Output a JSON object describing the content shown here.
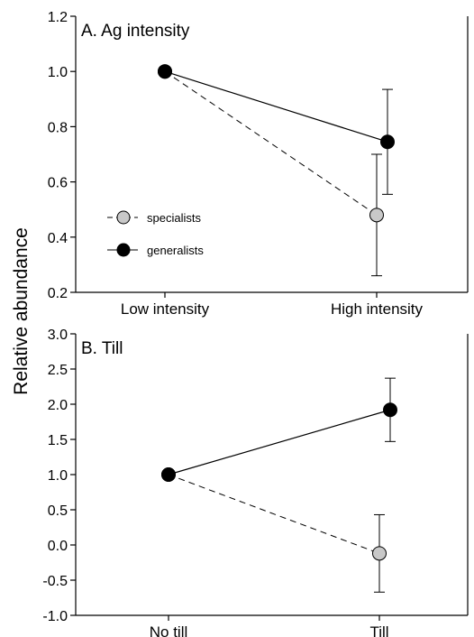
{
  "ylabel": "Relative abundance",
  "colors": {
    "specialists_fill": "#c8c8c8",
    "generalists_fill": "#000000",
    "stroke": "#000000",
    "background": "#ffffff"
  },
  "legend": {
    "items": [
      {
        "label": "specialists",
        "marker": "circle-gray",
        "line": "dashed"
      },
      {
        "label": "generalists",
        "marker": "circle-black",
        "line": "solid"
      }
    ]
  },
  "chart_data": [
    {
      "type": "line",
      "title": "A.  Ag intensity",
      "categories": [
        "Low intensity",
        "High intensity"
      ],
      "ylim": [
        0.2,
        1.2
      ],
      "yticks": [
        0.2,
        0.4,
        0.6,
        0.8,
        1.0,
        1.2
      ],
      "yticklabels": [
        "0.2",
        "0.4",
        "0.6",
        "0.8",
        "1.0",
        "1.2"
      ],
      "legend_position": "middle-left",
      "grid": false,
      "series": [
        {
          "name": "specialists",
          "values": [
            1.0,
            0.48
          ],
          "errors": [
            0,
            0.22
          ]
        },
        {
          "name": "generalists",
          "values": [
            1.0,
            0.745
          ],
          "errors": [
            0,
            0.19
          ]
        }
      ]
    },
    {
      "type": "line",
      "title": "B.  Till",
      "categories": [
        "No till",
        "Till"
      ],
      "ylim": [
        -1.0,
        3.0
      ],
      "yticks": [
        -1.0,
        -0.5,
        0.0,
        0.5,
        1.0,
        1.5,
        2.0,
        2.5,
        3.0
      ],
      "yticklabels": [
        "-1.0",
        "-0.5",
        "0.0",
        "0.5",
        "1.0",
        "1.5",
        "2.0",
        "2.5",
        "3.0"
      ],
      "grid": false,
      "series": [
        {
          "name": "specialists",
          "values": [
            1.0,
            -0.12
          ],
          "errors": [
            0,
            0.55
          ]
        },
        {
          "name": "generalists",
          "values": [
            1.0,
            1.92
          ],
          "errors": [
            0,
            0.45
          ]
        }
      ]
    }
  ]
}
